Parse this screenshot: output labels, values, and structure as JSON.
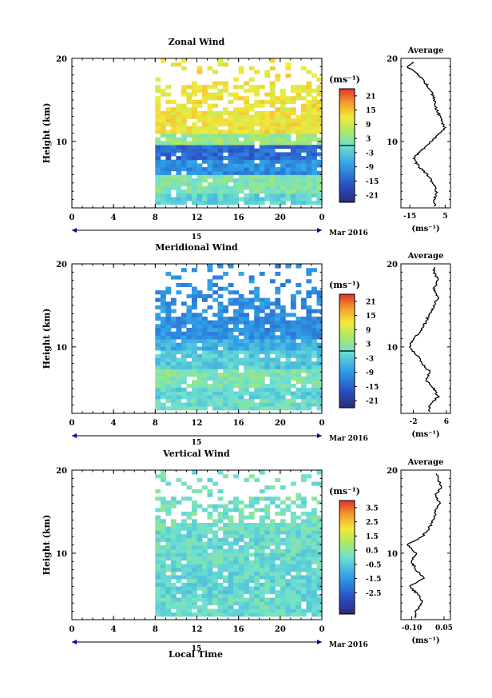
{
  "colorbar_unit": "(ms⁻¹)",
  "date_label": "Mar 2016",
  "date_day": "15",
  "xlabel": "Local Time",
  "chart_data": [
    {
      "type": "heatmap",
      "title": "Zonal Wind",
      "ylabel": "Height (km)",
      "xlim": [
        0,
        24
      ],
      "ylim": [
        2,
        20
      ],
      "x_ticks": [
        "0",
        "4",
        "8",
        "12",
        "16",
        "20",
        "0"
      ],
      "y_ticks": [
        "10",
        "20"
      ],
      "colorbar_ticks": [
        "21",
        "15",
        "9",
        "3",
        "-3",
        "-9",
        "-15",
        "-21"
      ],
      "colorbar_range": [
        -24,
        24
      ],
      "data_time_range": [
        8,
        24
      ],
      "gap_time": [
        17.6,
        18.0
      ],
      "profile_layers": [
        {
          "h": 11.5,
          "v": 12
        },
        {
          "h": 10.3,
          "v": 4
        },
        {
          "h": 8.3,
          "v": -14
        },
        {
          "h": 7.2,
          "v": -10
        },
        {
          "h": 4.5,
          "v": 2
        },
        {
          "h": 3.0,
          "v": -2
        }
      ],
      "average": {
        "title": "Average",
        "xlabel": "(ms⁻¹)",
        "x_ticks": [
          "-15",
          "5"
        ],
        "xlim": [
          -20,
          8
        ],
        "heights": [
          3,
          4,
          5,
          6,
          7,
          8,
          9,
          10,
          11,
          11.5,
          12,
          13,
          14,
          15,
          16,
          17,
          18,
          18.5,
          19,
          19.5
        ],
        "values": [
          -1,
          0,
          -2,
          -5,
          -10,
          -13,
          -8,
          -3,
          2,
          5,
          4,
          2,
          0,
          -1,
          -3,
          -6,
          -10,
          -13,
          -17,
          -13
        ]
      }
    },
    {
      "type": "heatmap",
      "title": "Meridional Wind",
      "ylabel": "Height (km)",
      "xlim": [
        0,
        24
      ],
      "ylim": [
        2,
        20
      ],
      "x_ticks": [
        "0",
        "4",
        "8",
        "12",
        "16",
        "20",
        "0"
      ],
      "y_ticks": [
        "10",
        "20"
      ],
      "colorbar_ticks": [
        "21",
        "15",
        "9",
        "3",
        "-3",
        "-9",
        "-15",
        "-21"
      ],
      "colorbar_range": [
        -24,
        24
      ],
      "data_time_range": [
        8,
        24
      ],
      "gap_time": [
        17.6,
        18.0
      ],
      "profile_layers": [
        {
          "h": 11.5,
          "v": -10
        },
        {
          "h": 10.2,
          "v": -6
        },
        {
          "h": 8.5,
          "v": -3
        },
        {
          "h": 6.0,
          "v": 2
        },
        {
          "h": 4.0,
          "v": -2
        },
        {
          "h": 3.0,
          "v": 0
        }
      ],
      "average": {
        "title": "Average",
        "xlabel": "(ms⁻¹)",
        "x_ticks": [
          "-2",
          "6"
        ],
        "xlim": [
          -5,
          7
        ],
        "heights": [
          3,
          4,
          5,
          6,
          7,
          8,
          9,
          10,
          11,
          12,
          13,
          14,
          15,
          16,
          17,
          18,
          19
        ],
        "values": [
          2,
          4,
          3,
          1,
          2,
          0,
          -1,
          -3,
          -2,
          0,
          1,
          2,
          3,
          4,
          3,
          4,
          3
        ]
      }
    },
    {
      "type": "heatmap",
      "title": "Vertical Wind",
      "ylabel": "Height (km)",
      "xlim": [
        0,
        24
      ],
      "ylim": [
        2,
        20
      ],
      "x_ticks": [
        "0",
        "4",
        "8",
        "12",
        "16",
        "20",
        "0"
      ],
      "y_ticks": [
        "10",
        "20"
      ],
      "colorbar_ticks": [
        "3.5",
        "2.5",
        "1.5",
        "0.5",
        "-0.5",
        "-1.5",
        "-2.5"
      ],
      "colorbar_range": [
        -4,
        4
      ],
      "data_time_range": [
        8,
        24
      ],
      "gap_time": [
        17.6,
        18.0
      ],
      "profile_layers": [
        {
          "h": 15,
          "v": 0.1
        },
        {
          "h": 10,
          "v": -0.1
        },
        {
          "h": 6,
          "v": -0.2
        },
        {
          "h": 3,
          "v": -0.1
        }
      ],
      "average": {
        "title": "Average",
        "xlabel": "(ms⁻¹)",
        "x_ticks": [
          "-0.10",
          "0.05"
        ],
        "xlim": [
          -0.15,
          0.08
        ],
        "heights": [
          3,
          4,
          5,
          6,
          7,
          8,
          9,
          10,
          11,
          12,
          13,
          14,
          15,
          16,
          17,
          18,
          19
        ],
        "values": [
          -0.08,
          -0.05,
          -0.07,
          -0.11,
          -0.04,
          -0.08,
          -0.1,
          -0.08,
          -0.12,
          -0.05,
          -0.02,
          0.0,
          0.01,
          0.03,
          0.01,
          0.04,
          0.02
        ]
      }
    }
  ]
}
